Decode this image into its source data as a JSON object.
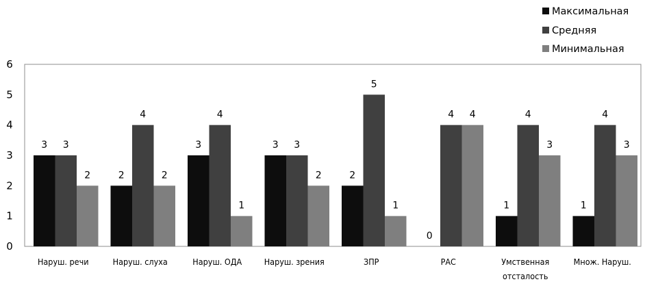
{
  "chart_data": {
    "type": "bar",
    "categories": [
      "Наруш. речи",
      "Наруш. слуха",
      "Наруш. ОДА",
      "Наруш. зрения",
      "ЗПР",
      "РАС",
      "Умственная отсталость",
      "Множ. Наруш."
    ],
    "series": [
      {
        "name": "Максимальная",
        "color": "#0d0d0d",
        "values": [
          3,
          2,
          3,
          3,
          2,
          0,
          1,
          1
        ]
      },
      {
        "name": "Средняя",
        "color": "#404040",
        "values": [
          3,
          4,
          4,
          3,
          5,
          4,
          4,
          4
        ]
      },
      {
        "name": "Минимальная",
        "color": "#7f7f7f",
        "values": [
          2,
          2,
          1,
          2,
          1,
          4,
          3,
          3
        ]
      }
    ],
    "ylim": [
      0,
      6
    ],
    "yticks": [
      0,
      1,
      2,
      3,
      4,
      5,
      6
    ],
    "grid": false,
    "legend": "top-right",
    "data_labels": true
  }
}
